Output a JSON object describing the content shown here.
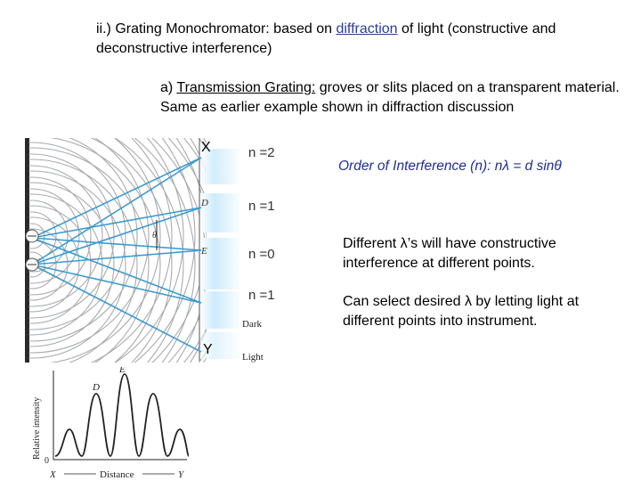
{
  "heading": {
    "prefix": "ii.) Grating Monochromator: based on ",
    "link": "diffraction",
    "suffix": " of light (constructive and deconstructive interference)"
  },
  "subpoint": {
    "prefix": "a) ",
    "term": "Transmission Grating:",
    "text": " groves or slits placed on a transparent material.  Same as earlier example shown in diffraction discussion"
  },
  "order_formula": "Order of Interference (n):  nλ = d sinθ",
  "notes": [
    "Different λ’s will have constructive interference at different points.",
    "Can select desired λ by letting light at different points into instrument."
  ],
  "diagram": {
    "x_label": "X",
    "y_label": "Y",
    "order_labels": [
      "n =2",
      "n =1",
      "n =0",
      "n =1"
    ],
    "point_labels": {
      "d": "D",
      "e": "E",
      "theta": "θ"
    },
    "screen_labels": {
      "dark": "Dark",
      "light": "Light"
    }
  },
  "intensity_plot": {
    "y_axis": "Relative intensity",
    "x_axis": "Distance",
    "x_start": "X",
    "x_end": "Y",
    "origin": "0",
    "peak_d": "D",
    "peak_e": "E"
  },
  "colors": {
    "link": "#2b3f8f",
    "formula": "#1f2f8a",
    "rays": "#3b9bd0",
    "screen_glow": "#bfe6fb"
  }
}
